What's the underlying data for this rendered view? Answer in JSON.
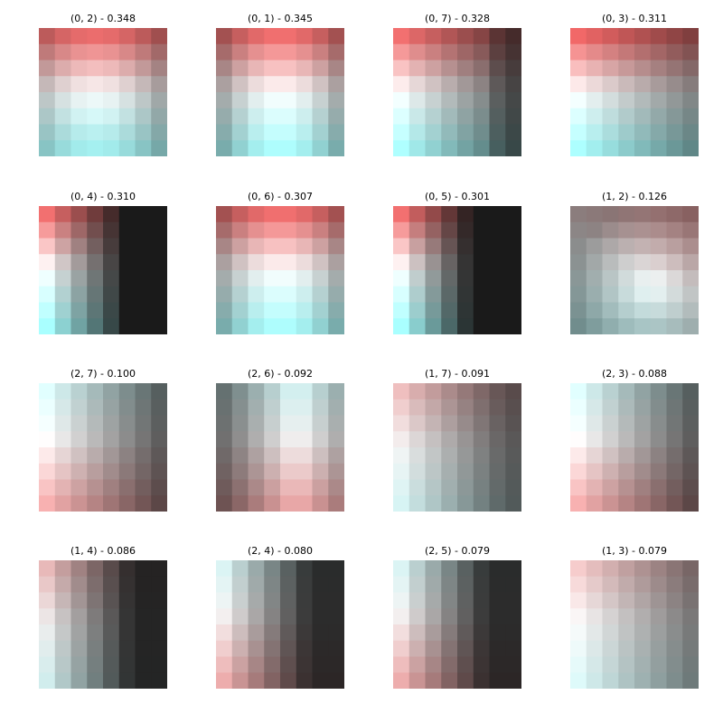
{
  "chart_data": {
    "type": "heatmap",
    "grid": false,
    "grid_size": 8,
    "colormap": {
      "name": "diverging red-black-cyan",
      "positive_color": "#f06060",
      "negative_color": "#a8ffff",
      "zero_brightness": "dark"
    },
    "panels": [
      {
        "title": "(0, 2) - 0.348",
        "i": 0,
        "j": 2,
        "score": 0.348,
        "pattern": "fade_down"
      },
      {
        "title": "(0, 1) - 0.345",
        "i": 0,
        "j": 1,
        "score": 0.345,
        "pattern": "fade_down_mid"
      },
      {
        "title": "(0, 7) - 0.328",
        "i": 0,
        "j": 7,
        "score": 0.328,
        "pattern": "fade_down_right_dark"
      },
      {
        "title": "(0, 3) - 0.311",
        "i": 0,
        "j": 3,
        "score": 0.311,
        "pattern": "fade_down_right"
      },
      {
        "title": "(0, 4) - 0.310",
        "i": 0,
        "j": 4,
        "score": 0.31,
        "pattern": "left_colored_right_black"
      },
      {
        "title": "(0, 6) - 0.307",
        "i": 0,
        "j": 6,
        "score": 0.307,
        "pattern": "fade_down_mid"
      },
      {
        "title": "(0, 5) - 0.301",
        "i": 0,
        "j": 5,
        "score": 0.301,
        "pattern": "left_colored_right_black_strong"
      },
      {
        "title": "(1, 2) - 0.126",
        "i": 1,
        "j": 2,
        "score": 0.126,
        "pattern": "center_bright"
      },
      {
        "title": "(2, 7) - 0.100",
        "i": 2,
        "j": 7,
        "score": 0.1,
        "pattern": "cyan_top_red_bottom_dark_right"
      },
      {
        "title": "(2, 6) - 0.092",
        "i": 2,
        "j": 6,
        "score": 0.092,
        "pattern": "dark_left_bright_center"
      },
      {
        "title": "(1, 7) - 0.091",
        "i": 1,
        "j": 7,
        "score": 0.091,
        "pattern": "red_top_cyan_bottom_dark_right"
      },
      {
        "title": "(2, 3) - 0.088",
        "i": 2,
        "j": 3,
        "score": 0.088,
        "pattern": "cyan_top_red_bottom_dark_right"
      },
      {
        "title": "(1, 4) - 0.086",
        "i": 1,
        "j": 4,
        "score": 0.086,
        "pattern": "red_top_cyan_bottom_black_right"
      },
      {
        "title": "(2, 4) - 0.080",
        "i": 2,
        "j": 4,
        "score": 0.08,
        "pattern": "cyan_top_red_bottom_black_right"
      },
      {
        "title": "(2, 5) - 0.079",
        "i": 2,
        "j": 5,
        "score": 0.079,
        "pattern": "cyan_top_red_bottom_black_right"
      },
      {
        "title": "(1, 3) - 0.079",
        "i": 1,
        "j": 3,
        "score": 0.079,
        "pattern": "red_top_cyan_bottom_soft"
      }
    ]
  }
}
